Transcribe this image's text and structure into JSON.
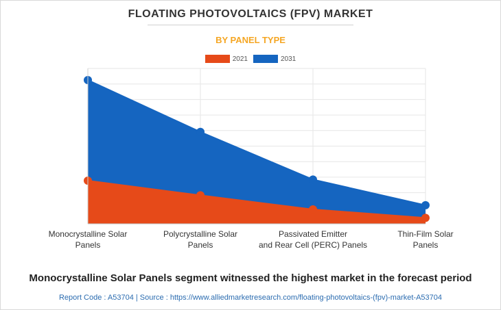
{
  "chart_data": {
    "type": "area",
    "title": "FLOATING PHOTOVOLTAICS (FPV) MARKET",
    "subtitle": "BY PANEL TYPE",
    "categories": [
      [
        "Monocrystalline Solar",
        "Panels"
      ],
      [
        "Polycrystalline Solar",
        "Panels"
      ],
      [
        "Passivated Emitter",
        "and Rear Cell (PERC) Panels"
      ],
      [
        "Thin-Film Solar",
        "Panels"
      ]
    ],
    "series": [
      {
        "name": "2031",
        "color": "#1565c0",
        "values": [
          5.1,
          3.26,
          1.57,
          0.66
        ]
      },
      {
        "name": "2021",
        "color": "#e64a19",
        "values": [
          1.53,
          1.01,
          0.51,
          0.21
        ]
      }
    ],
    "ylim": [
      0,
      5.1
    ],
    "grid": true,
    "legend": "top-center"
  },
  "footer": {
    "headline": "Monocrystalline Solar Panels segment witnessed the highest market in the forecast period",
    "source": "Report Code : A53704  |  Source : https://www.alliedmarketresearch.com/floating-photovoltaics-(fpv)-market-A53704"
  }
}
